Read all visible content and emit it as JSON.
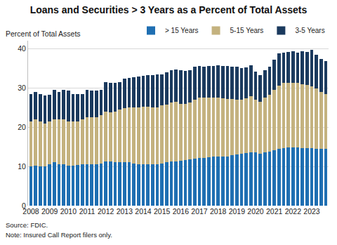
{
  "chart_data": {
    "type": "bar",
    "stacked": true,
    "title": "Loans and Securities > 3 Years as a Percent of Total Assets",
    "y_label": "Percent of Total Assets",
    "annotations": [
      "Source: FDIC.",
      "Note: Insured Call Report filers only."
    ],
    "legend": "top right",
    "grid": true,
    "ylim": [
      0,
      42
    ],
    "yticks": [
      0,
      10,
      20,
      30,
      40
    ],
    "categories": [
      "2008",
      null,
      null,
      null,
      "2009",
      null,
      null,
      null,
      "2010",
      null,
      null,
      null,
      "2011",
      null,
      null,
      null,
      "2012",
      null,
      null,
      null,
      "2013",
      null,
      null,
      null,
      "2014",
      null,
      null,
      null,
      "2015",
      null,
      null,
      null,
      "2016",
      null,
      null,
      null,
      "2017",
      null,
      null,
      null,
      "2018",
      null,
      null,
      null,
      "2019",
      null,
      null,
      null,
      "2020",
      null,
      null,
      null,
      "2021",
      null,
      null,
      null,
      "2022",
      null,
      null,
      null,
      "2023",
      null,
      null,
      null
    ],
    "series": [
      {
        "name": "> 15 Years",
        "color": "#1f6fb2",
        "values": [
          10,
          10.2,
          10,
          10,
          10.5,
          11,
          10.5,
          10.5,
          10.2,
          10.2,
          10.3,
          10.5,
          10.5,
          10.5,
          10.5,
          10.8,
          11.2,
          11.2,
          11,
          11,
          11,
          11,
          10.8,
          10.6,
          10.5,
          10.5,
          10.5,
          10.6,
          10.8,
          11,
          11.2,
          11.2,
          11.5,
          11.6,
          11.8,
          12,
          12.2,
          12.2,
          12.3,
          12.5,
          12.6,
          12.6,
          12.6,
          12.8,
          13,
          13.2,
          13.4,
          13.6,
          13.5,
          13.2,
          13.5,
          13.8,
          14.2,
          14.5,
          14.6,
          14.8,
          14.8,
          14.8,
          14.7,
          14.7,
          14.6,
          14.5,
          14.4,
          14.4
        ]
      },
      {
        "name": "5-15 Years",
        "color": "#c4b27f",
        "values": [
          11.5,
          11.8,
          11.5,
          11,
          11,
          11,
          11.5,
          11.5,
          11.3,
          11.3,
          11.2,
          11.5,
          12,
          12,
          12,
          12.2,
          12.8,
          12.6,
          13,
          13.5,
          13.8,
          14,
          14.2,
          14.4,
          14.7,
          14.7,
          14.5,
          14.4,
          14.7,
          14.8,
          15,
          15.3,
          14.5,
          14.4,
          14.4,
          15,
          15.3,
          15.3,
          15.2,
          15.1,
          14.9,
          14.8,
          14.6,
          14.4,
          14,
          13.8,
          13.9,
          14.2,
          13.5,
          13.3,
          14,
          14.4,
          15.3,
          16,
          16.6,
          16.5,
          16.5,
          16.4,
          16.3,
          16.1,
          15.7,
          15.3,
          14.6,
          14.1
        ]
      },
      {
        "name": "3-5 Years",
        "color": "#1b3a5e",
        "values": [
          7,
          7,
          7,
          7,
          6.8,
          7.5,
          7,
          7.5,
          7.8,
          7,
          7,
          6.5,
          7,
          6.8,
          6.8,
          6.5,
          7.5,
          7.4,
          7.3,
          7,
          7.5,
          7.5,
          7.7,
          7.8,
          7.8,
          8.1,
          8.3,
          8.5,
          8,
          8.2,
          8.3,
          8.2,
          8.5,
          8.3,
          8.3,
          8.3,
          8,
          7.9,
          8,
          7.9,
          8.3,
          8.2,
          8.3,
          8.1,
          8.3,
          8.1,
          7.9,
          8,
          7.2,
          6.7,
          7,
          7.1,
          7.7,
          8.3,
          7.8,
          7.9,
          8,
          7.8,
          8.3,
          8.4,
          9.3,
          8.6,
          8.4,
          8.3
        ]
      }
    ]
  }
}
